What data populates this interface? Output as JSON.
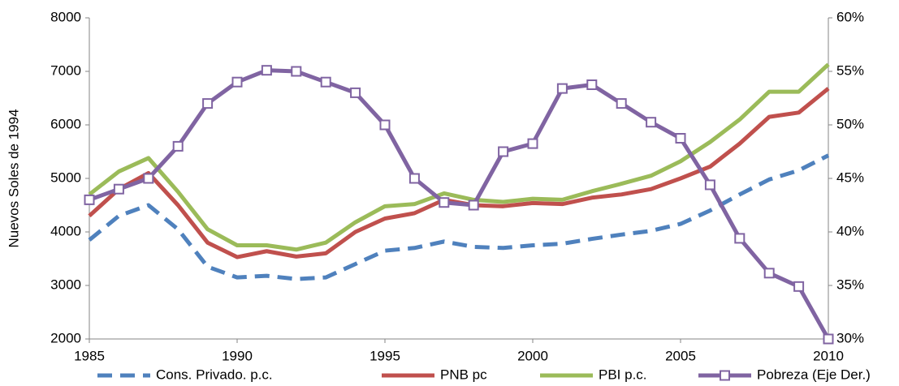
{
  "chart_data": {
    "type": "line",
    "y_label": "Nuevos Soles de 1994",
    "x": [
      1985,
      1986,
      1987,
      1988,
      1989,
      1990,
      1991,
      1992,
      1993,
      1994,
      1995,
      1996,
      1997,
      1998,
      1999,
      2000,
      2001,
      2002,
      2003,
      2004,
      2005,
      2006,
      2007,
      2008,
      2009,
      2010
    ],
    "xlim": [
      1985,
      2010
    ],
    "xticks": [
      1985,
      1990,
      1995,
      2000,
      2005,
      2010
    ],
    "ylim": [
      2000,
      8000
    ],
    "yticks": [
      2000,
      3000,
      4000,
      5000,
      6000,
      7000,
      8000
    ],
    "y2lim": [
      30,
      60
    ],
    "y2ticks": [
      {
        "value": 30,
        "label": "30%"
      },
      {
        "value": 35,
        "label": "35%"
      },
      {
        "value": 40,
        "label": "40%"
      },
      {
        "value": 45,
        "label": "45%"
      },
      {
        "value": 50,
        "label": "50%"
      },
      {
        "value": 55,
        "label": "55%"
      },
      {
        "value": 60,
        "label": "60%"
      }
    ],
    "legend": "bottom",
    "series": [
      {
        "name": "Cons. Privado. p.c.",
        "color": "#4f81bd",
        "dash": true,
        "values": [
          3850,
          4300,
          4500,
          4050,
          3350,
          3150,
          3180,
          3120,
          3150,
          3400,
          3650,
          3700,
          3820,
          3720,
          3700,
          3750,
          3780,
          3870,
          3950,
          4020,
          4150,
          4400,
          4700,
          4980,
          5150,
          5430
        ]
      },
      {
        "name": "PNB pc",
        "color": "#c0504d",
        "values": [
          4300,
          4800,
          5100,
          4500,
          3800,
          3530,
          3640,
          3540,
          3600,
          4000,
          4250,
          4350,
          4600,
          4500,
          4480,
          4540,
          4520,
          4640,
          4700,
          4800,
          5000,
          5220,
          5650,
          6150,
          6230,
          6680
        ]
      },
      {
        "name": "PBI p.c.",
        "color": "#9bbb59",
        "values": [
          4700,
          5130,
          5380,
          4750,
          4050,
          3750,
          3750,
          3670,
          3800,
          4180,
          4480,
          4520,
          4720,
          4600,
          4560,
          4620,
          4600,
          4760,
          4900,
          5050,
          5320,
          5680,
          6100,
          6620,
          6620,
          7130
        ]
      },
      {
        "name": "Pobreza (Eje Der.)",
        "color": "#8064a2",
        "axis": "y2",
        "marker": "square",
        "values": [
          43,
          44,
          45,
          48,
          52,
          54,
          55.1,
          55,
          54,
          53,
          50,
          45,
          42.75,
          42.5,
          47.5,
          48.25,
          53.4,
          53.75,
          52,
          50.25,
          48.75,
          44.4,
          39.4,
          36.15,
          34.9,
          30
        ]
      }
    ]
  }
}
